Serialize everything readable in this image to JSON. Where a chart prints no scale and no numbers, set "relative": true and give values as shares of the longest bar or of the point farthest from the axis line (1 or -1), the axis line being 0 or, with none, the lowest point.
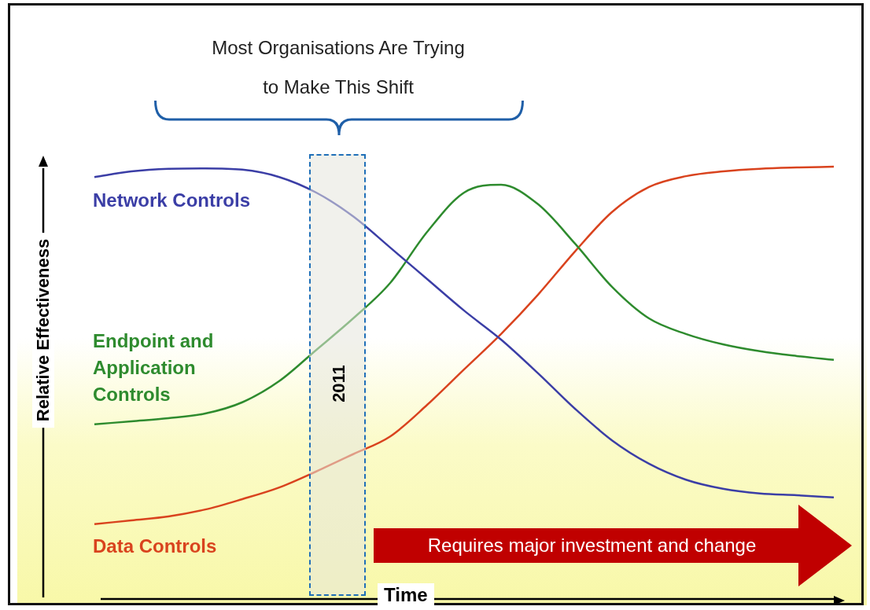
{
  "chart_data": {
    "type": "line",
    "relative": true,
    "xlabel": "Time",
    "ylabel": "Relative Effectiveness",
    "categories": [
      null,
      null,
      null,
      null,
      null,
      null,
      null,
      null,
      null,
      null,
      null,
      null,
      null,
      null,
      null,
      null,
      null,
      null,
      null,
      null,
      null
    ],
    "series": [
      {
        "name": "Network Controls",
        "color": "#3b3ea6",
        "values": [
          0.976,
          0.989,
          0.995,
          0.996,
          0.993,
          0.976,
          0.94,
          0.885,
          0.813,
          0.74,
          0.667,
          0.6,
          0.522,
          0.44,
          0.367,
          0.313,
          0.276,
          0.255,
          0.244,
          0.24,
          0.235
        ]
      },
      {
        "name": "Endpoint and Application Controls",
        "color": "#2e8b2e",
        "values": [
          0.404,
          0.411,
          0.418,
          0.429,
          0.455,
          0.504,
          0.576,
          0.649,
          0.731,
          0.849,
          0.94,
          0.958,
          0.913,
          0.822,
          0.722,
          0.649,
          0.613,
          0.589,
          0.573,
          0.562,
          0.553
        ]
      },
      {
        "name": "Data Controls",
        "color": "#d9431e",
        "values": [
          0.173,
          0.182,
          0.191,
          0.207,
          0.231,
          0.258,
          0.295,
          0.335,
          0.376,
          0.449,
          0.531,
          0.613,
          0.704,
          0.804,
          0.895,
          0.953,
          0.978,
          0.989,
          0.995,
          0.998,
          1
        ]
      }
    ],
    "annotations": [
      "Most Organisations Are Trying to Make This Shift",
      "2011",
      "Requires major investment and change"
    ],
    "legend": false,
    "marker": "none",
    "line_style": "solid"
  }
}
